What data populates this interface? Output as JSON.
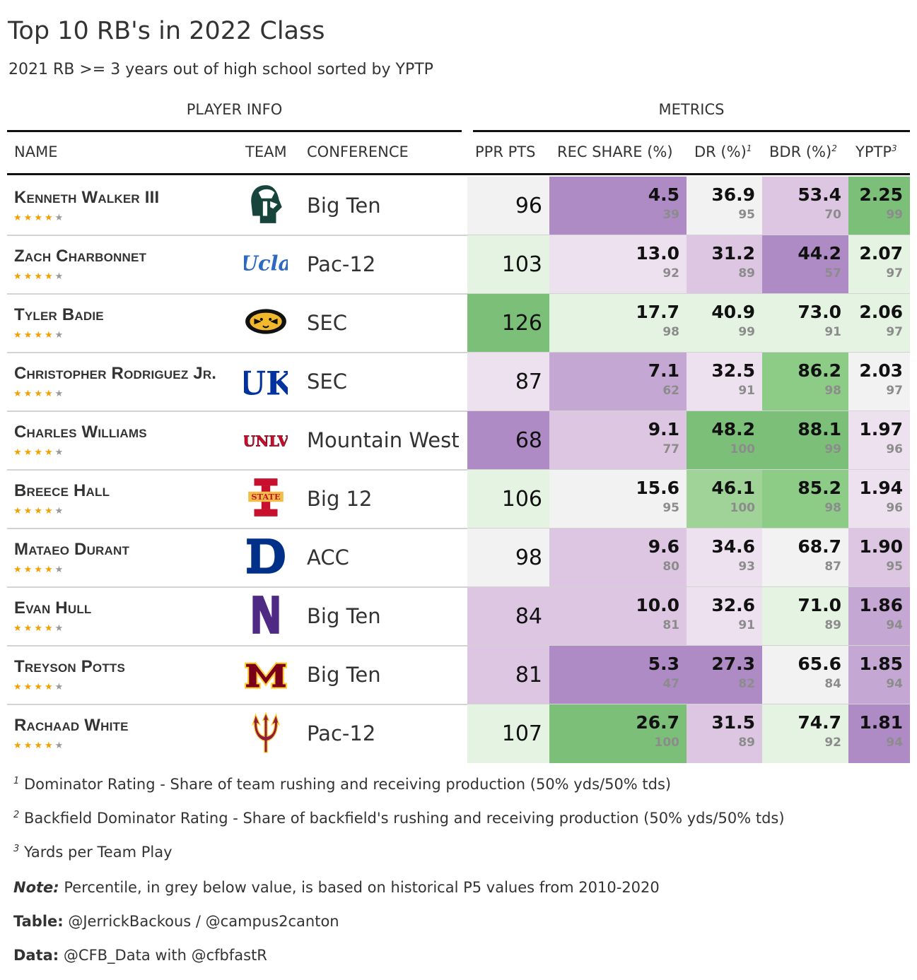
{
  "title": "Top 10 RB's in 2022 Class",
  "subtitle": "2021 RB >= 3 years out of high school sorted by YPTP",
  "spanners": {
    "player_info": "PLAYER INFO",
    "metrics": "METRICS"
  },
  "columns": {
    "name": "NAME",
    "team": "TEAM",
    "conference": "CONFERENCE",
    "ppr": "PPR PTS",
    "rec_share": "REC SHARE (%)",
    "dr": "DR (%)",
    "dr_note": "1",
    "bdr": "BDR (%)",
    "bdr_note": "2",
    "yptp": "YPTP",
    "yptp_note": "3"
  },
  "colors": {
    "purple_dark": "#ae8bc5",
    "purple_mid": "#c4a8d3",
    "purple_light": "#dcc6e2",
    "purple_pale": "#ede1ef",
    "neutral": "#f2f2f2",
    "green_pale": "#e4f3e2",
    "green_light": "#9fd398",
    "green_mid": "#8dcc87",
    "green_dark": "#7bbf79"
  },
  "chart_data": {
    "type": "table",
    "title": "Top 10 RB's in 2022 Class",
    "rows": [
      {
        "name": "Kenneth Walker III",
        "stars": 4,
        "team_icon": "michigan-state-spartan-icon",
        "conference": "Big Ten",
        "ppr": "96",
        "ppr_bg": "#f2f2f2",
        "rec": "4.5",
        "rec_pct": "39",
        "rec_bg": "#ae8bc5",
        "dr": "36.9",
        "dr_pct": "95",
        "dr_bg": "#f2f2f2",
        "bdr": "53.4",
        "bdr_pct": "70",
        "bdr_bg": "#dcc6e2",
        "yptp": "2.25",
        "yptp_pct": "99",
        "yptp_bg": "#7bbf79"
      },
      {
        "name": "Zach Charbonnet",
        "stars": 4,
        "team_icon": "ucla-script-icon",
        "conference": "Pac-12",
        "ppr": "103",
        "ppr_bg": "#e4f3e2",
        "rec": "13.0",
        "rec_pct": "92",
        "rec_bg": "#ede1ef",
        "dr": "31.2",
        "dr_pct": "89",
        "dr_bg": "#dcc6e2",
        "bdr": "44.2",
        "bdr_pct": "57",
        "bdr_bg": "#ae8bc5",
        "yptp": "2.07",
        "yptp_pct": "97",
        "yptp_bg": "#e4f3e2"
      },
      {
        "name": "Tyler Badie",
        "stars": 4,
        "team_icon": "missouri-tiger-icon",
        "conference": "SEC",
        "ppr": "126",
        "ppr_bg": "#7bbf79",
        "rec": "17.7",
        "rec_pct": "98",
        "rec_bg": "#e4f3e2",
        "dr": "40.9",
        "dr_pct": "99",
        "dr_bg": "#e4f3e2",
        "bdr": "73.0",
        "bdr_pct": "91",
        "bdr_bg": "#e4f3e2",
        "yptp": "2.06",
        "yptp_pct": "97",
        "yptp_bg": "#e4f3e2"
      },
      {
        "name": "Christopher Rodriguez Jr.",
        "stars": 4,
        "team_icon": "kentucky-uk-icon",
        "conference": "SEC",
        "ppr": "87",
        "ppr_bg": "#ede1ef",
        "rec": "7.1",
        "rec_pct": "62",
        "rec_bg": "#c4a8d3",
        "dr": "32.5",
        "dr_pct": "91",
        "dr_bg": "#ede1ef",
        "bdr": "86.2",
        "bdr_pct": "98",
        "bdr_bg": "#8dcc87",
        "yptp": "2.03",
        "yptp_pct": "97",
        "yptp_bg": "#f2f2f2"
      },
      {
        "name": "Charles Williams",
        "stars": 4,
        "team_icon": "unlv-wordmark-icon",
        "conference": "Mountain West",
        "ppr": "68",
        "ppr_bg": "#ae8bc5",
        "rec": "9.1",
        "rec_pct": "77",
        "rec_bg": "#dcc6e2",
        "dr": "48.2",
        "dr_pct": "100",
        "dr_bg": "#7bbf79",
        "bdr": "88.1",
        "bdr_pct": "99",
        "bdr_bg": "#7bbf79",
        "yptp": "1.97",
        "yptp_pct": "96",
        "yptp_bg": "#ede1ef"
      },
      {
        "name": "Breece Hall",
        "stars": 4,
        "team_icon": "iowa-state-icon",
        "conference": "Big 12",
        "ppr": "106",
        "ppr_bg": "#e4f3e2",
        "rec": "15.6",
        "rec_pct": "95",
        "rec_bg": "#f2f2f2",
        "dr": "46.1",
        "dr_pct": "100",
        "dr_bg": "#9fd398",
        "bdr": "85.2",
        "bdr_pct": "98",
        "bdr_bg": "#8dcc87",
        "yptp": "1.94",
        "yptp_pct": "96",
        "yptp_bg": "#ede1ef"
      },
      {
        "name": "Mataeo Durant",
        "stars": 4,
        "team_icon": "duke-d-icon",
        "conference": "ACC",
        "ppr": "98",
        "ppr_bg": "#f2f2f2",
        "rec": "9.6",
        "rec_pct": "80",
        "rec_bg": "#dcc6e2",
        "dr": "34.6",
        "dr_pct": "93",
        "dr_bg": "#ede1ef",
        "bdr": "68.7",
        "bdr_pct": "87",
        "bdr_bg": "#f2f2f2",
        "yptp": "1.90",
        "yptp_pct": "95",
        "yptp_bg": "#dcc6e2"
      },
      {
        "name": "Evan Hull",
        "stars": 4,
        "team_icon": "northwestern-n-icon",
        "conference": "Big Ten",
        "ppr": "84",
        "ppr_bg": "#dcc6e2",
        "rec": "10.0",
        "rec_pct": "81",
        "rec_bg": "#dcc6e2",
        "dr": "32.6",
        "dr_pct": "91",
        "dr_bg": "#ede1ef",
        "bdr": "71.0",
        "bdr_pct": "89",
        "bdr_bg": "#e4f3e2",
        "yptp": "1.86",
        "yptp_pct": "94",
        "yptp_bg": "#c4a8d3"
      },
      {
        "name": "Treyson Potts",
        "stars": 4,
        "team_icon": "minnesota-m-icon",
        "conference": "Big Ten",
        "ppr": "81",
        "ppr_bg": "#dcc6e2",
        "rec": "5.3",
        "rec_pct": "47",
        "rec_bg": "#ae8bc5",
        "dr": "27.3",
        "dr_pct": "82",
        "dr_bg": "#ae8bc5",
        "bdr": "65.6",
        "bdr_pct": "84",
        "bdr_bg": "#f2f2f2",
        "yptp": "1.85",
        "yptp_pct": "94",
        "yptp_bg": "#c4a8d3"
      },
      {
        "name": "Rachaad White",
        "stars": 4,
        "team_icon": "arizona-state-pitchfork-icon",
        "conference": "Pac-12",
        "ppr": "107",
        "ppr_bg": "#e4f3e2",
        "rec": "26.7",
        "rec_pct": "100",
        "rec_bg": "#7bbf79",
        "dr": "31.5",
        "dr_pct": "89",
        "dr_bg": "#dcc6e2",
        "bdr": "74.7",
        "bdr_pct": "92",
        "bdr_bg": "#e4f3e2",
        "yptp": "1.81",
        "yptp_pct": "94",
        "yptp_bg": "#ae8bc5"
      }
    ]
  },
  "footnotes": {
    "f1_mark": "1",
    "f1": "Dominator Rating - Share of team rushing and receiving production (50% yds/50% tds)",
    "f2_mark": "2",
    "f2": "Backfield Dominator Rating - Share of backfield's rushing and receiving production (50% yds/50% tds)",
    "f3_mark": "3",
    "f3": "Yards per Team Play",
    "note_label": "Note:",
    "note": "Percentile, in grey below value, is based on historical P5 values from 2010-2020",
    "table_label": "Table:",
    "table": "@JerrickBackous / @campus2canton",
    "data_label": "Data:",
    "data": "@CFB_Data with @cfbfastR"
  }
}
